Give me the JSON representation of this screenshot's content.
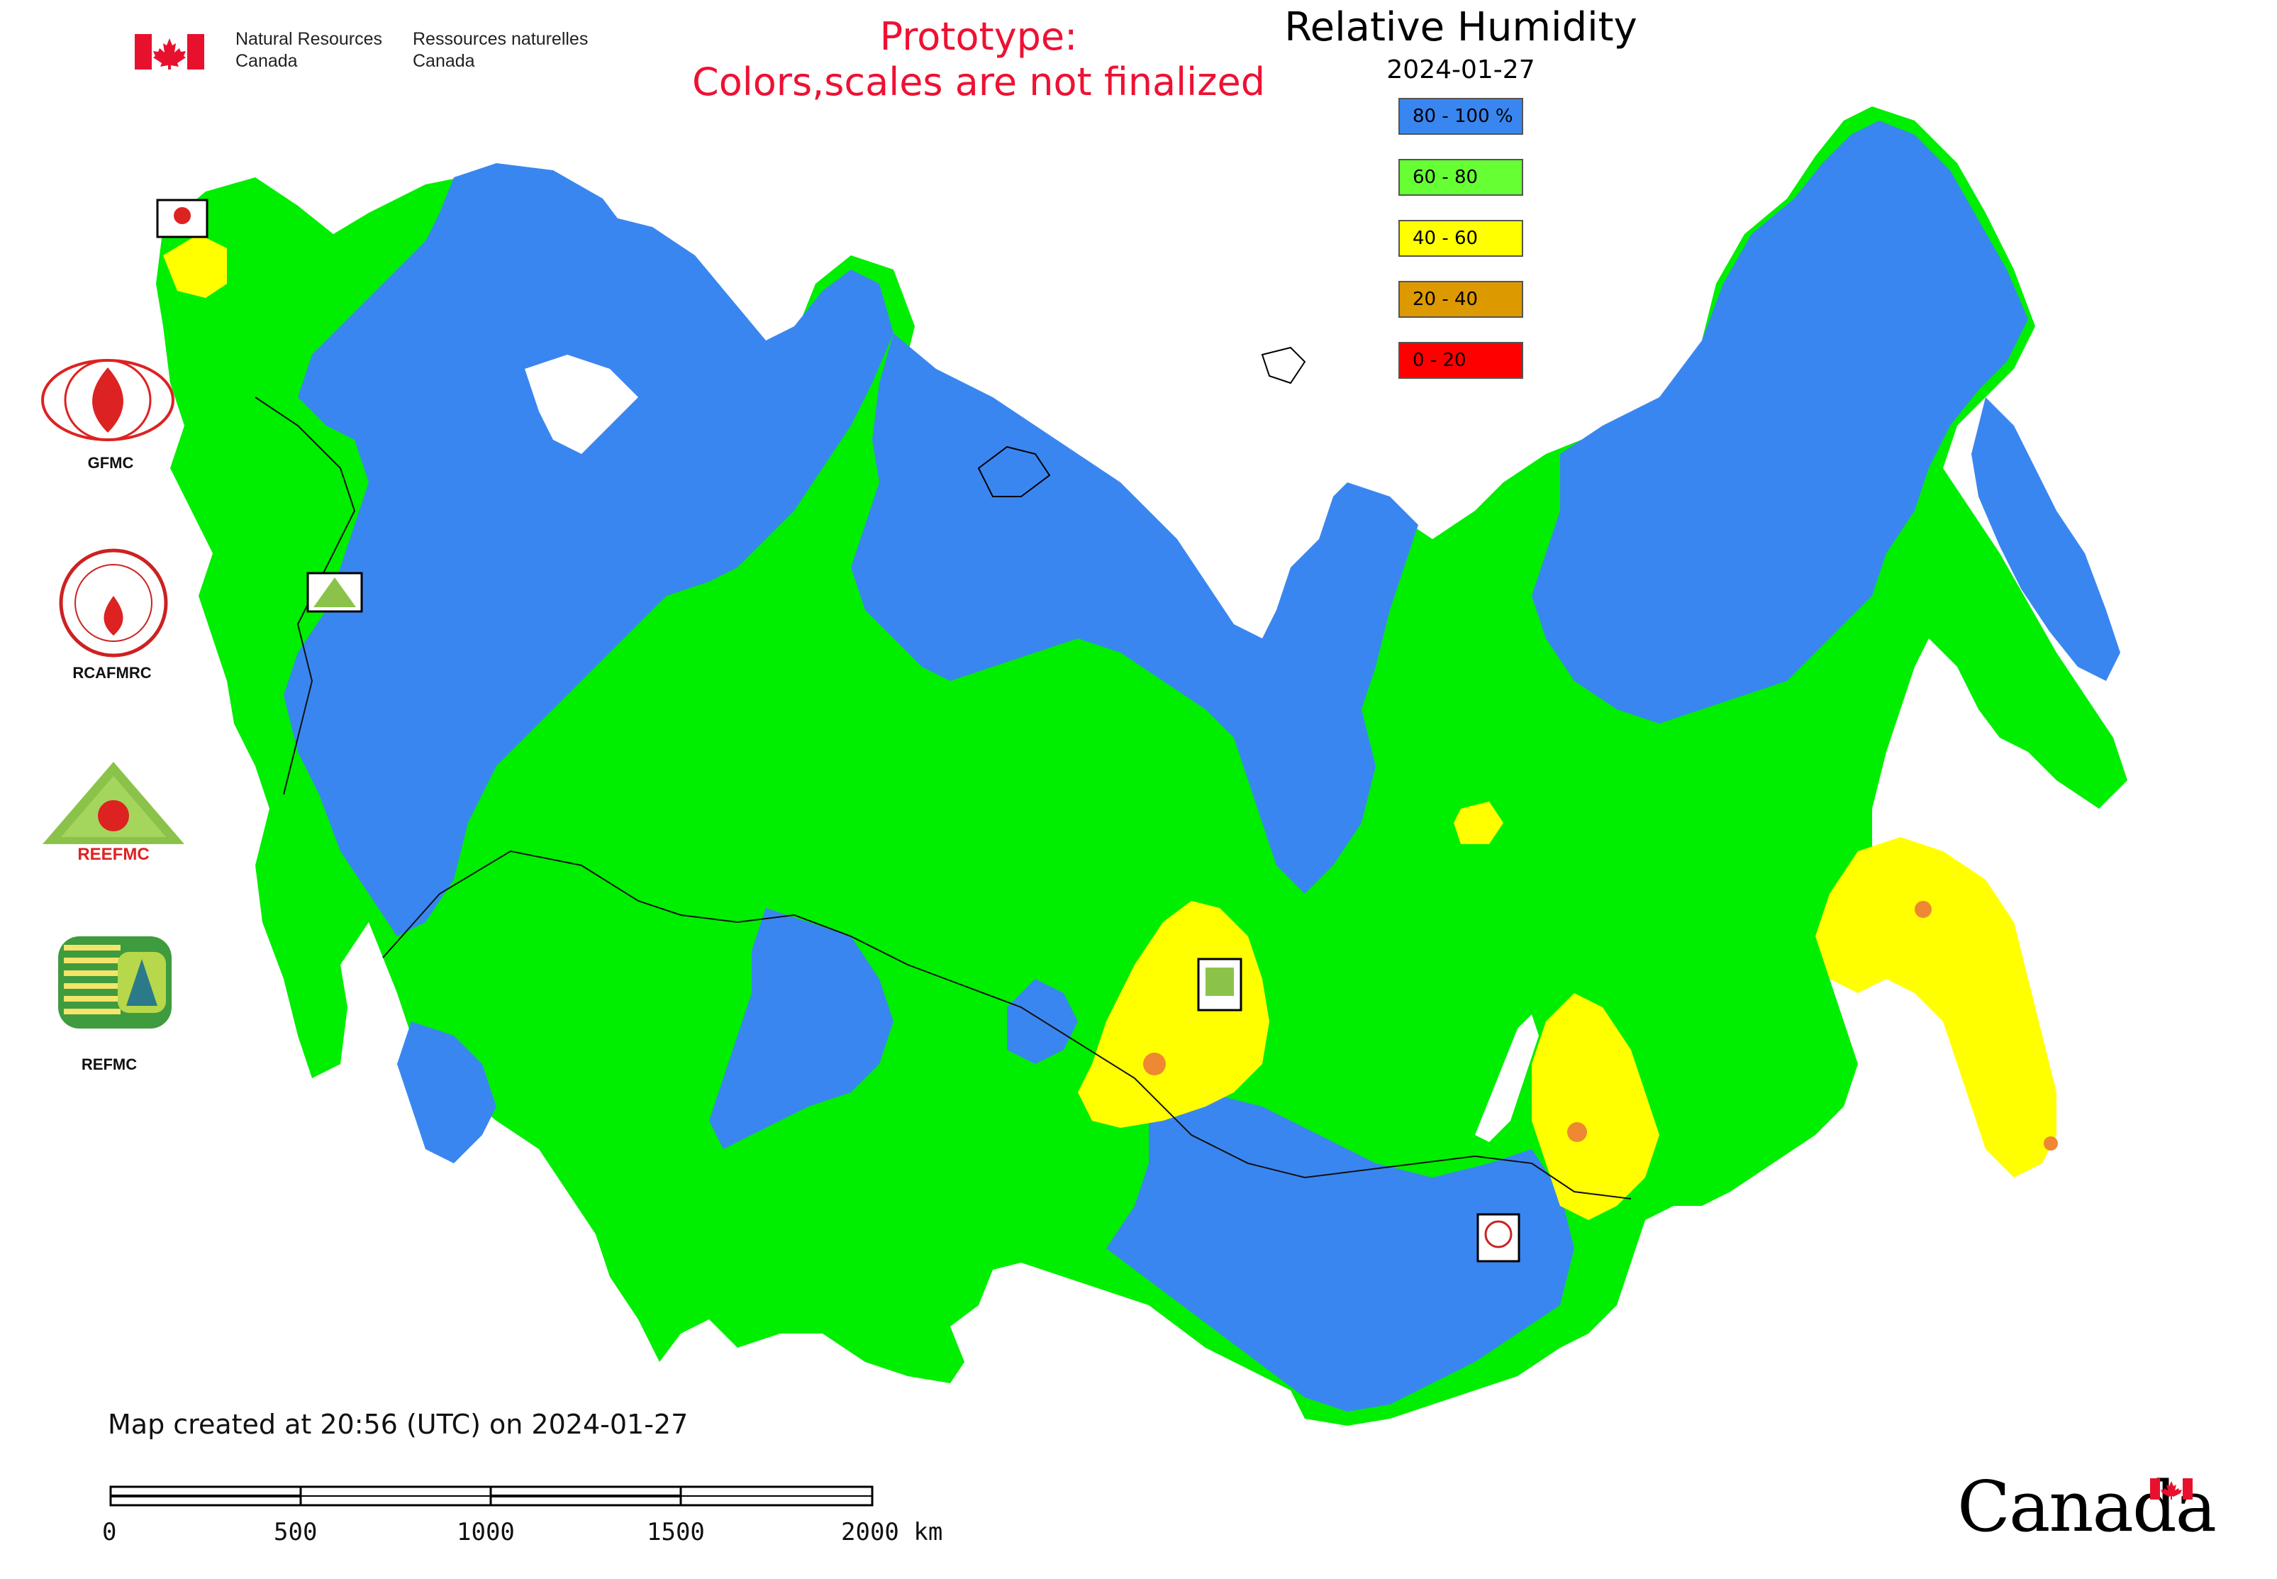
{
  "header": {
    "org_en": [
      "Natural Resources",
      "Canada"
    ],
    "org_fr": [
      "Ressources naturelles",
      "Canada"
    ],
    "prototype_line1": "Prototype:",
    "prototype_line2": "Colors,scales are not finalized"
  },
  "legend": {
    "title": "Relative Humidity",
    "date": "2024-01-27",
    "items": [
      {
        "label": "80 - 100 %",
        "color": "#3a86f0"
      },
      {
        "label": "60 - 80",
        "color": "#66ff33"
      },
      {
        "label": "40 - 60",
        "color": "#ffff00"
      },
      {
        "label": "20 - 40",
        "color": "#dd9900"
      },
      {
        "label": "0 - 20",
        "color": "#ff0000"
      }
    ]
  },
  "logos": [
    {
      "label": "GFMC",
      "icon": "gfmc-logo"
    },
    {
      "label": "RCAFMRC",
      "icon": "rcafmrc-logo"
    },
    {
      "label": "",
      "icon": "reefmc-triangle-logo"
    },
    {
      "label": "REFMC",
      "icon": "refmc-logo"
    }
  ],
  "map": {
    "region": "Russia and Central Asia",
    "colors": {
      "blue": "#3a86f0",
      "green": "#00ee00",
      "yellow": "#ffff00",
      "orange": "#ee8833",
      "water": "#ffffff"
    }
  },
  "footer": {
    "created": "Map created at 20:56 (UTC) on 2024-01-27",
    "scale_labels": [
      "0",
      "500",
      "1000",
      "1500",
      "2000 km"
    ],
    "wordmark": "Canada"
  }
}
